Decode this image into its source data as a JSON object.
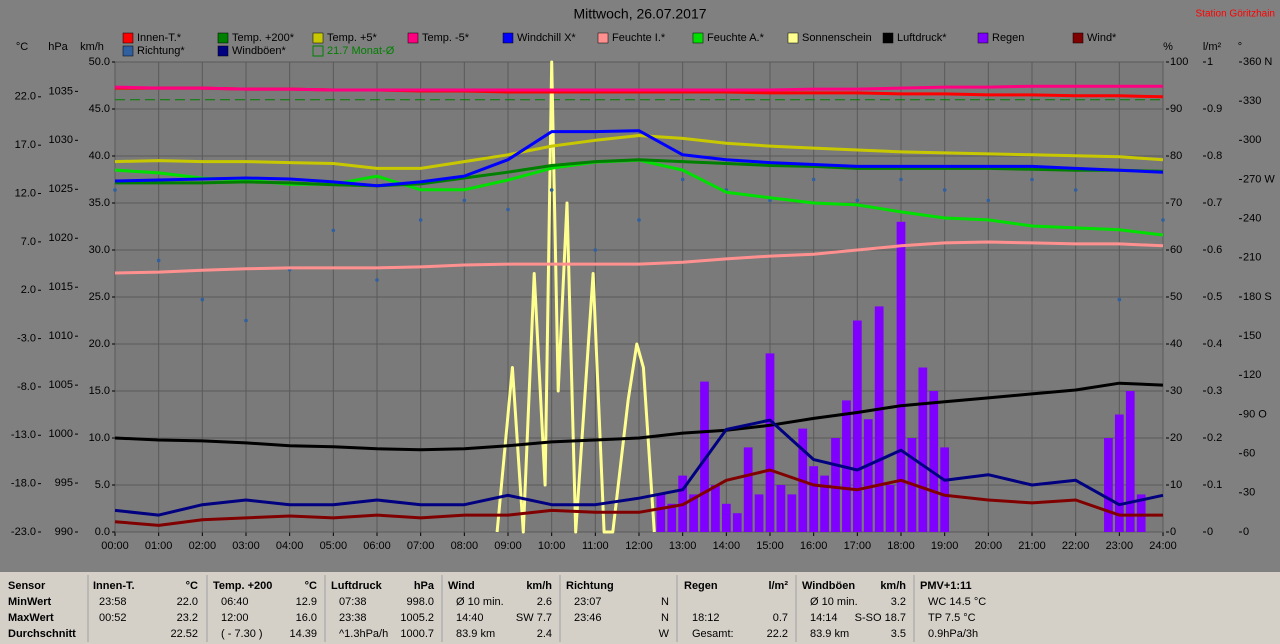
{
  "chart_data": {
    "type": "line",
    "title": "Mittwoch, 26.07.2017",
    "station": "Station Göritzhain",
    "grid": true,
    "xlim": [
      0,
      24
    ],
    "xticks": [
      {
        "value": 0,
        "label": "00:00"
      },
      {
        "value": 1,
        "label": "01:00"
      },
      {
        "value": 2,
        "label": "02:00"
      },
      {
        "value": 3,
        "label": "03:00"
      },
      {
        "value": 4,
        "label": "04:00"
      },
      {
        "value": 5,
        "label": "05:00"
      },
      {
        "value": 6,
        "label": "06:00"
      },
      {
        "value": 7,
        "label": "07:00"
      },
      {
        "value": 8,
        "label": "08:00"
      },
      {
        "value": 9,
        "label": "09:00"
      },
      {
        "value": 10,
        "label": "10:00"
      },
      {
        "value": 11,
        "label": "11:00"
      },
      {
        "value": 12,
        "label": "12:00"
      },
      {
        "value": 13,
        "label": "13:00"
      },
      {
        "value": 14,
        "label": "14:00"
      },
      {
        "value": 15,
        "label": "15:00"
      },
      {
        "value": 16,
        "label": "16:00"
      },
      {
        "value": 17,
        "label": "17:00"
      },
      {
        "value": 18,
        "label": "18:00"
      },
      {
        "value": 19,
        "label": "19:00"
      },
      {
        "value": 20,
        "label": "20:00"
      },
      {
        "value": 21,
        "label": "21:00"
      },
      {
        "value": 22,
        "label": "22:00"
      },
      {
        "value": 23,
        "label": "23:00"
      },
      {
        "value": 24,
        "label": "24:00"
      }
    ],
    "x": [
      0,
      1,
      2,
      3,
      4,
      5,
      6,
      7,
      8,
      9,
      10,
      11,
      12,
      13,
      14,
      15,
      16,
      17,
      18,
      19,
      20,
      21,
      22,
      23,
      24
    ],
    "axes": [
      {
        "name": "°C",
        "lim": [
          -23,
          25.6
        ],
        "ticks": [
          {
            "value": -23,
            "label": "-23.0"
          },
          {
            "value": -18,
            "label": "-18.0"
          },
          {
            "value": -13,
            "label": "-13.0"
          },
          {
            "value": -8,
            "label": "-8.0"
          },
          {
            "value": -3,
            "label": "-3.0"
          },
          {
            "value": 2,
            "label": "2.0"
          },
          {
            "value": 7,
            "label": "7.0"
          },
          {
            "value": 12,
            "label": "12.0"
          },
          {
            "value": 17,
            "label": "17.0"
          },
          {
            "value": 22,
            "label": "22.0"
          }
        ]
      },
      {
        "name": "hPa",
        "lim": [
          990,
          1038
        ],
        "ticks": [
          990,
          995,
          1000,
          1005,
          1010,
          1015,
          1020,
          1025,
          1030,
          1035
        ]
      },
      {
        "name": "km/h",
        "lim": [
          0,
          50
        ],
        "grid": true,
        "ticks": [
          {
            "value": 0,
            "label": "0.0"
          },
          {
            "value": 5,
            "label": "5.0"
          },
          {
            "value": 10,
            "label": "10.0"
          },
          {
            "value": 15,
            "label": "15.0"
          },
          {
            "value": 20,
            "label": "20.0"
          },
          {
            "value": 25,
            "label": "25.0"
          },
          {
            "value": 30,
            "label": "30.0"
          },
          {
            "value": 35,
            "label": "35.0"
          },
          {
            "value": 40,
            "label": "40.0"
          },
          {
            "value": 45,
            "label": "45.0"
          },
          {
            "value": 50,
            "label": "50.0"
          }
        ]
      },
      {
        "name": "%",
        "lim": [
          0,
          100
        ],
        "ticks": [
          0,
          10,
          20,
          30,
          40,
          50,
          60,
          70,
          80,
          90,
          100
        ]
      },
      {
        "name": "l/m²",
        "lim": [
          0,
          1
        ],
        "ticks": [
          0,
          0.1,
          0.2,
          0.3,
          0.4,
          0.5,
          0.6,
          0.7,
          0.8,
          0.9,
          1
        ]
      },
      {
        "name": "°",
        "lim": [
          0,
          360
        ],
        "ticks": [
          0,
          30,
          60,
          {
            "value": 90,
            "label": "90 O"
          },
          120,
          150,
          {
            "value": 180,
            "label": "180 S"
          },
          210,
          240,
          {
            "value": 270,
            "label": "270 W"
          },
          300,
          330,
          {
            "value": 360,
            "label": "360 N"
          }
        ]
      }
    ],
    "series": [
      {
        "name": "Innen-T.*",
        "color": "#ff0000",
        "axis": "°C",
        "type": "line",
        "values": [
          22.9,
          22.9,
          22.9,
          22.8,
          22.8,
          22.7,
          22.7,
          22.6,
          22.6,
          22.5,
          22.5,
          22.5,
          22.5,
          22.5,
          22.5,
          22.4,
          22.4,
          22.4,
          22.3,
          22.3,
          22.2,
          22.2,
          22.1,
          22.1,
          22.0
        ]
      },
      {
        "name": "Temp. +200*",
        "color": "#008000",
        "axis": "°C",
        "type": "line",
        "values": [
          13.1,
          13.1,
          13.1,
          13.2,
          13.1,
          12.9,
          12.8,
          13.0,
          13.6,
          14.2,
          14.9,
          15.3,
          15.5,
          15.3,
          15.1,
          14.9,
          14.8,
          14.6,
          14.6,
          14.6,
          14.6,
          14.5,
          14.4,
          14.4,
          14.3
        ]
      },
      {
        "name": "Temp. +5*",
        "color": "#c8c800",
        "axis": "°C",
        "type": "line",
        "values": [
          15.3,
          15.4,
          15.3,
          15.3,
          15.2,
          15.1,
          14.6,
          14.6,
          15.3,
          16.0,
          16.9,
          17.5,
          18.0,
          17.7,
          17.2,
          16.9,
          16.7,
          16.5,
          16.3,
          16.2,
          16.1,
          16.0,
          15.9,
          15.8,
          15.5
        ]
      },
      {
        "name": "Temp. -5*",
        "color": "#ff0080",
        "axis": "°C",
        "type": "line",
        "values": [
          23.0,
          22.9,
          22.9,
          22.8,
          22.8,
          22.7,
          22.7,
          22.7,
          22.7,
          22.7,
          22.7,
          22.7,
          22.7,
          22.7,
          22.7,
          22.7,
          22.8,
          22.8,
          22.9,
          23.0,
          23.0,
          23.1,
          23.1,
          23.1,
          23.1
        ]
      },
      {
        "name": "Windchill X*",
        "color": "#0000ff",
        "axis": "°C",
        "type": "line",
        "values": [
          13.3,
          13.4,
          13.5,
          13.6,
          13.5,
          13.2,
          12.8,
          13.2,
          13.8,
          15.5,
          18.4,
          18.4,
          18.5,
          16.0,
          15.5,
          15.2,
          15.0,
          14.8,
          14.8,
          14.8,
          14.8,
          14.8,
          14.6,
          14.4,
          14.2
        ]
      },
      {
        "name": "Feuchte I.*",
        "color": "#ff9090",
        "axis": "%",
        "type": "line",
        "values": [
          55.1,
          55.3,
          55.7,
          56.0,
          56.2,
          56.2,
          56.2,
          56.4,
          56.8,
          57.0,
          57.0,
          57.0,
          57.0,
          57.4,
          58.1,
          58.7,
          59.1,
          60.0,
          60.9,
          61.5,
          61.7,
          61.5,
          61.3,
          61.3,
          60.9
        ]
      },
      {
        "name": "Feuchte A.*",
        "color": "#00e000",
        "axis": "%",
        "type": "line",
        "values": [
          77.0,
          76.4,
          75.3,
          74.9,
          74.0,
          74.0,
          75.7,
          72.8,
          72.8,
          74.9,
          77.4,
          78.7,
          79.1,
          77.0,
          72.3,
          71.1,
          70.0,
          69.6,
          68.1,
          66.8,
          66.4,
          65.1,
          64.7,
          64.3,
          63.2
        ]
      },
      {
        "name": "Sonnenschein",
        "color": "#ffff90",
        "axis": "%",
        "type": "line",
        "x": [
          8.75,
          9.1,
          9.35,
          9.6,
          9.85,
          10.0,
          10.15,
          10.35,
          10.55,
          10.95,
          11.2,
          11.4,
          11.75,
          11.95,
          12.1,
          12.35
        ],
        "values": [
          0,
          35,
          0,
          55,
          10,
          100,
          30,
          70,
          0,
          55,
          0,
          0,
          28,
          40,
          35,
          0
        ]
      },
      {
        "name": "Luftdruck*",
        "color": "#000000",
        "axis": "hPa",
        "type": "line",
        "values": [
          999.6,
          999.4,
          999.3,
          999.1,
          998.8,
          998.7,
          998.5,
          998.4,
          998.5,
          998.8,
          999.2,
          999.4,
          999.6,
          1000.1,
          1000.4,
          1000.9,
          1001.6,
          1002.2,
          1002.9,
          1003.3,
          1003.7,
          1004.1,
          1004.5,
          1005.2,
          1005.0
        ]
      },
      {
        "name": "Regen",
        "color": "#8000ff",
        "axis": "l/m²",
        "type": "bar",
        "x": [
          12.5,
          12.75,
          13,
          13.25,
          13.5,
          13.75,
          14,
          14.25,
          14.5,
          14.75,
          15,
          15.25,
          15.5,
          15.75,
          16,
          16.25,
          16.5,
          16.75,
          17,
          17.25,
          17.5,
          17.75,
          18,
          18.25,
          18.5,
          18.75,
          19,
          22.75,
          23,
          23.25,
          23.5
        ],
        "values": [
          0.08,
          0.06,
          0.12,
          0.08,
          0.32,
          0.1,
          0.06,
          0.04,
          0.18,
          0.08,
          0.38,
          0.1,
          0.08,
          0.22,
          0.14,
          0.12,
          0.2,
          0.28,
          0.45,
          0.24,
          0.48,
          0.1,
          0.66,
          0.2,
          0.35,
          0.3,
          0.18,
          0.2,
          0.25,
          0.3,
          0.08
        ]
      },
      {
        "name": "Wind*",
        "color": "#800000",
        "axis": "km/h",
        "type": "line",
        "values": [
          1.1,
          0.7,
          1.3,
          1.5,
          1.7,
          1.5,
          1.8,
          1.5,
          1.8,
          1.8,
          2.3,
          2.1,
          2.1,
          2.9,
          5.5,
          6.6,
          5.0,
          4.5,
          5.5,
          3.9,
          3.4,
          3.1,
          3.4,
          1.8,
          1.8
        ]
      },
      {
        "name": "Richtung*",
        "color": "#3060a0",
        "axis": "°",
        "type": "scatter",
        "values": [
          262,
          208,
          178,
          162,
          201,
          231,
          193,
          239,
          254,
          247,
          262,
          216,
          239,
          270,
          262,
          254,
          270,
          254,
          270,
          262,
          254,
          270,
          262,
          178,
          239
        ]
      },
      {
        "name": "Windböen*",
        "color": "#000080",
        "axis": "km/h",
        "type": "line",
        "values": [
          2.3,
          1.8,
          2.9,
          3.4,
          2.9,
          2.9,
          3.4,
          2.9,
          2.9,
          3.9,
          2.9,
          2.9,
          3.6,
          4.5,
          10.9,
          11.9,
          7.7,
          6.6,
          8.7,
          5.5,
          6.1,
          5.0,
          5.5,
          2.9,
          3.9
        ]
      }
    ],
    "reference": {
      "name": "21.7 Monat-Ø",
      "value": 21.7,
      "axis": "°C",
      "color": "#008000"
    }
  },
  "table": {
    "header_label": "Sensor",
    "columns": [
      {
        "name": "Innen-T.",
        "unit": "°C"
      },
      {
        "name": "Temp. +200",
        "unit": "°C"
      },
      {
        "name": "Luftdruck",
        "unit": "hPa"
      },
      {
        "name": "Wind",
        "unit": "km/h"
      },
      {
        "name": "Richtung"
      },
      {
        "name": "Regen",
        "unit": "l/m²"
      },
      {
        "name": "Windböen",
        "unit": "km/h"
      },
      {
        "name": "PMV+1:11"
      }
    ],
    "rows": [
      {
        "label": "MinWert",
        "cells": [
          {
            "left": "23:58",
            "right": "22.0"
          },
          {
            "left": "06:40",
            "right": "12.9"
          },
          {
            "left": "07:38",
            "right": "998.0"
          },
          {
            "left": "Ø 10 min.",
            "right": "2.6"
          },
          {
            "left": "23:07",
            "right": "N"
          },
          null,
          {
            "left": "Ø 10 min.",
            "right": "3.2"
          },
          {
            "left": "WC 14.5 °C"
          }
        ]
      },
      {
        "label": "MaxWert",
        "cells": [
          {
            "left": "00:52",
            "right": "23.2"
          },
          {
            "left": "12:00",
            "right": "16.0"
          },
          {
            "left": "23:38",
            "right": "1005.2"
          },
          {
            "left": "14:40",
            "right": "SW 7.7"
          },
          {
            "left": "23:46",
            "right": "N"
          },
          {
            "left": "18:12",
            "right": "0.7"
          },
          {
            "left": "14:14",
            "right": "S-SO 18.7"
          },
          {
            "left": "TP 7.5 °C"
          }
        ]
      },
      {
        "label": "Durchschnitt",
        "cells": [
          {
            "right": "22.52"
          },
          {
            "left": "( - 7.30 )",
            "right": "14.39"
          },
          {
            "left": "^1.3hPa/h",
            "right": "1000.7"
          },
          {
            "left": "83.9 km",
            "right": "2.4"
          },
          {
            "right": "W"
          },
          {
            "left": "Gesamt:",
            "right": "22.2"
          },
          {
            "left": "83.9 km",
            "right": "3.5"
          },
          {
            "left": "0.9hPa/3h"
          }
        ]
      }
    ]
  }
}
